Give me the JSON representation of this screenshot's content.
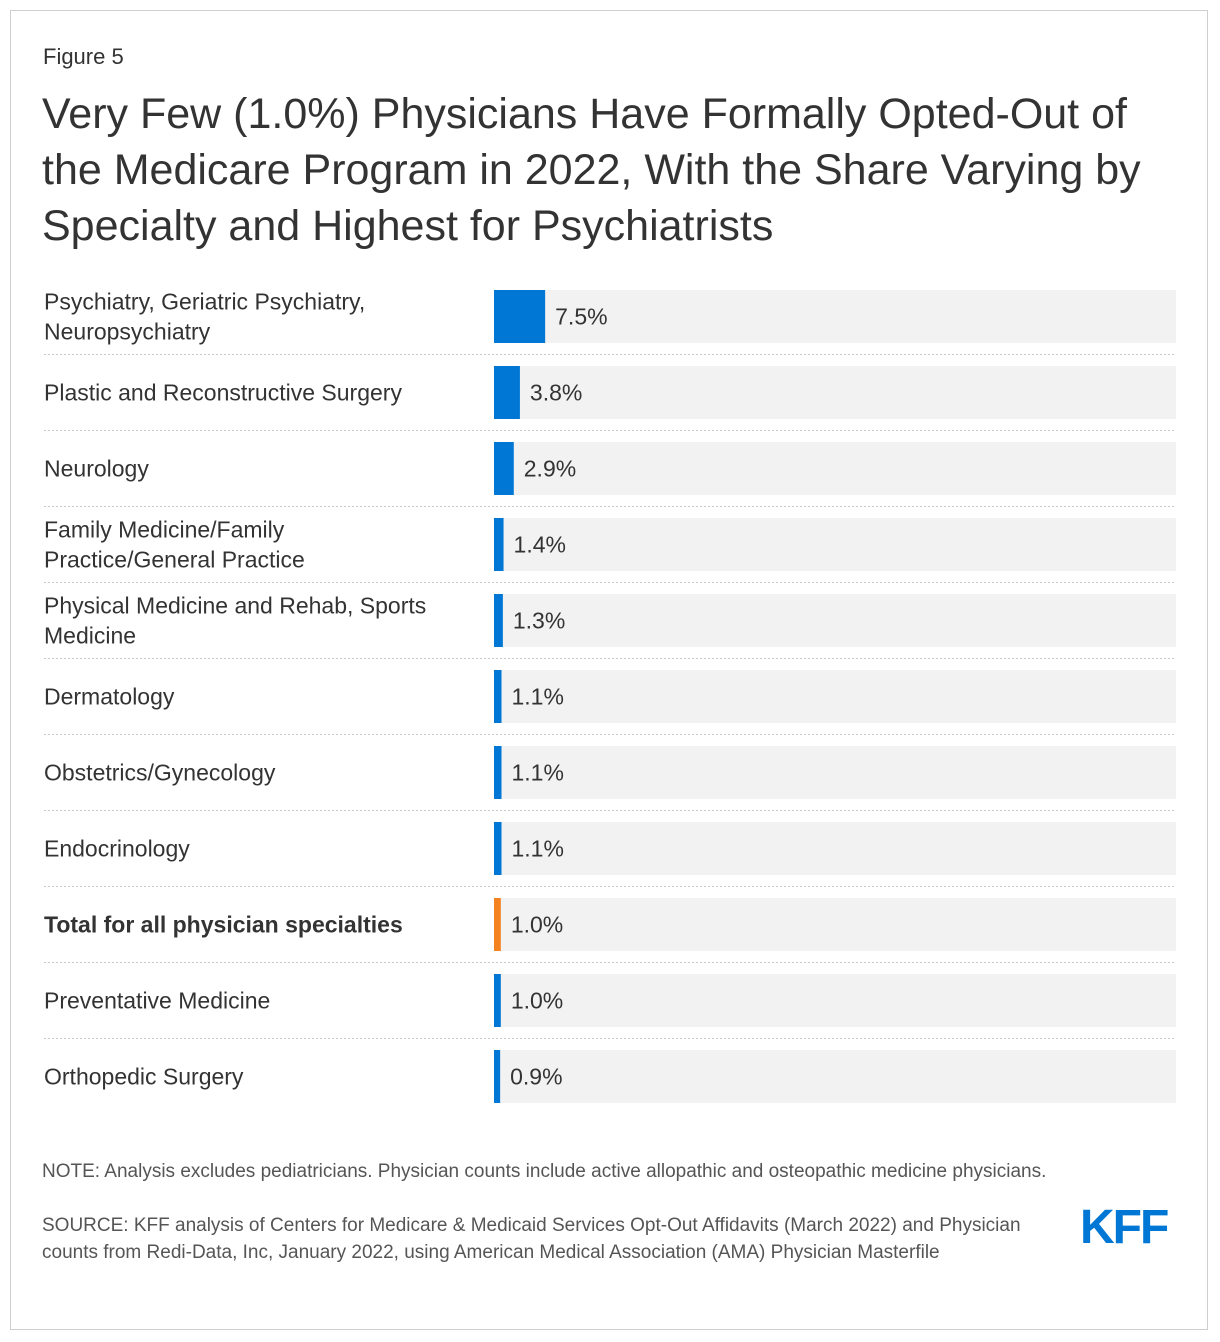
{
  "figure_label": "Figure 5",
  "title": "Very Few (1.0%) Physicians Have Formally Opted-Out of the Medicare Program in 2022, With the Share Varying by Specialty and Highest for Psychiatrists",
  "chart_data": {
    "type": "bar",
    "orientation": "horizontal",
    "categories": [
      [
        "Psychiatry, Geriatric Psychiatry,",
        "Neuropsychiatry"
      ],
      [
        "Plastic and Reconstructive Surgery"
      ],
      [
        "Neurology"
      ],
      [
        "Family Medicine/Family",
        "Practice/General Practice"
      ],
      [
        "Physical Medicine and Rehab, Sports",
        "Medicine"
      ],
      [
        "Dermatology"
      ],
      [
        "Obstetrics/Gynecology"
      ],
      [
        "Endocrinology"
      ],
      [
        "Total for all physician specialties"
      ],
      [
        "Preventative Medicine"
      ],
      [
        "Orthopedic Surgery"
      ]
    ],
    "values": [
      7.5,
      3.8,
      2.9,
      1.4,
      1.3,
      1.1,
      1.1,
      1.1,
      1.0,
      1.0,
      0.9
    ],
    "value_labels": [
      "7.5%",
      "3.8%",
      "2.9%",
      "1.4%",
      "1.3%",
      "1.1%",
      "1.1%",
      "1.1%",
      "1.0%",
      "1.0%",
      "0.9%"
    ],
    "highlight_index": 8,
    "xlim": [
      0,
      100
    ],
    "grid": false,
    "legend": "none",
    "colors": {
      "bar": "#0077d4",
      "highlight": "#f58220",
      "track": "#f2f2f2",
      "separator": "#c8c8c8"
    }
  },
  "note": "NOTE: Analysis excludes pediatricians. Physician counts include active allopathic and osteopathic medicine physicians.",
  "source": "SOURCE: KFF analysis of Centers for Medicare & Medicaid Services Opt-Out Affidavits (March 2022) and Physician counts from Redi-Data, Inc, January 2022, using American Medical Association (AMA) Physician Masterfile",
  "logo_text": "KFF"
}
